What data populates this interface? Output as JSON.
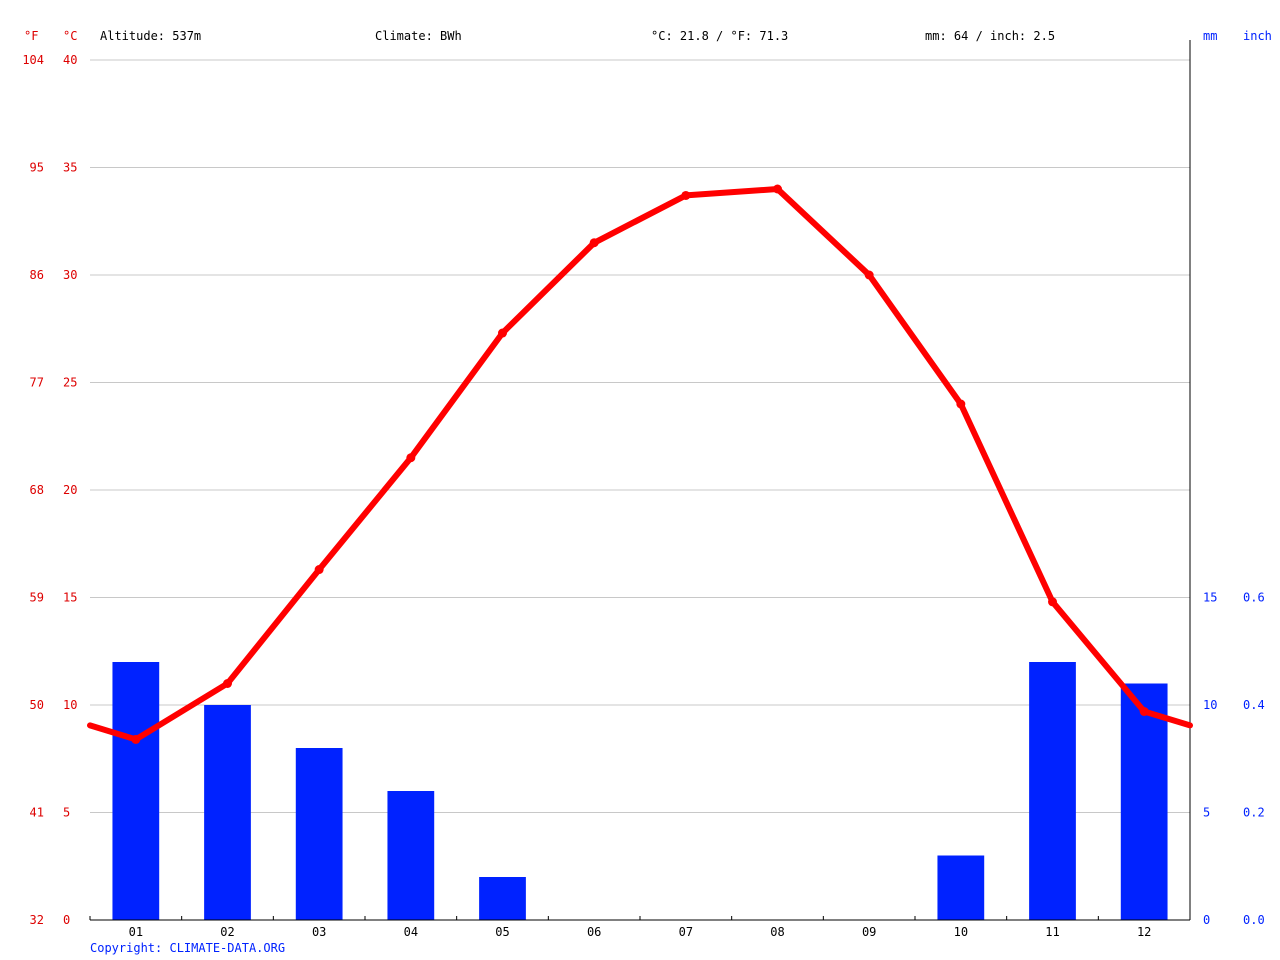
{
  "header": {
    "unit_f": "°F",
    "unit_c": "°C",
    "altitude": "Altitude: 537m",
    "climate": "Climate: BWh",
    "temp_avg": "°C: 21.8 / °F: 71.3",
    "precip_total": "mm: 64 / inch: 2.5",
    "unit_mm": "mm",
    "unit_inch": "inch"
  },
  "copyright": "Copyright: CLIMATE-DATA.ORG",
  "colors": {
    "temperature": "#ff0000",
    "temperature_axis": "#dd0000",
    "precipitation": "#0022ff",
    "precipitation_axis": "#0022ff",
    "grid": "#c8c8c8",
    "axis": "#000000"
  },
  "chart_data": {
    "type": "bar+line",
    "categories": [
      "01",
      "02",
      "03",
      "04",
      "05",
      "06",
      "07",
      "08",
      "09",
      "10",
      "11",
      "12"
    ],
    "temperature_c": [
      8.4,
      11.0,
      16.3,
      21.5,
      27.3,
      31.5,
      33.7,
      34.0,
      30.0,
      24.0,
      14.8,
      9.7
    ],
    "precipitation_mm": [
      12,
      10,
      8,
      6,
      2,
      0,
      0,
      0,
      0,
      3,
      12,
      11
    ],
    "celsius_axis": {
      "ylim": [
        0,
        40
      ],
      "ticks": [
        "0",
        "5",
        "10",
        "15",
        "20",
        "25",
        "30",
        "35",
        "40"
      ]
    },
    "fahrenheit_axis": {
      "ticks": [
        "32",
        "41",
        "50",
        "59",
        "68",
        "77",
        "86",
        "95",
        "104"
      ]
    },
    "mm_axis": {
      "ylim": [
        0,
        40
      ],
      "ticks": [
        "0",
        "5",
        "10",
        "15"
      ]
    },
    "inch_axis": {
      "ticks": [
        "0.0",
        "0.2",
        "0.4",
        "0.6"
      ]
    },
    "grid": true
  }
}
